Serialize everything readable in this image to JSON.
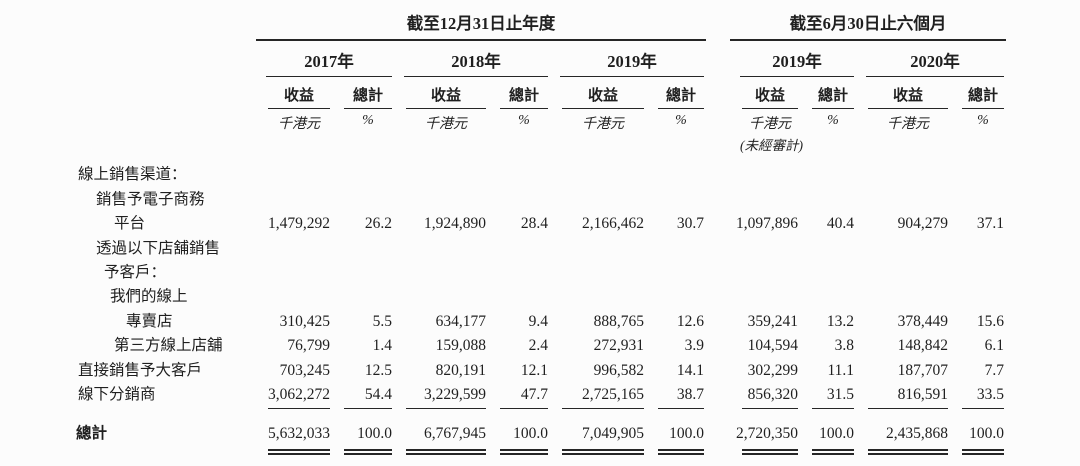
{
  "page": {
    "background": "#fcfcfc",
    "ink_color": "#1f1f1f",
    "rule_color": "#262626"
  },
  "table": {
    "groups": [
      {
        "title": "截至12月31日止年度",
        "years": [
          "2017年",
          "2018年",
          "2019年"
        ]
      },
      {
        "title": "截至6月30日止六個月",
        "years": [
          "2019年",
          "2020年"
        ]
      }
    ],
    "column_headers": {
      "revenue": "收益",
      "total": "總計"
    },
    "units": {
      "revenue": "千港元",
      "percent": "%",
      "unaudited_note": "(未經審計)"
    },
    "rows": [
      {
        "label": "線上銷售渠道：",
        "values": null
      },
      {
        "label": "銷售予電子商務",
        "values": null
      },
      {
        "label": "平台",
        "values": [
          "1,479,292",
          "26.2",
          "1,924,890",
          "28.4",
          "2,166,462",
          "30.7",
          "1,097,896",
          "40.4",
          "904,279",
          "37.1"
        ]
      },
      {
        "label": "透過以下店舖銷售",
        "values": null
      },
      {
        "label": "予客戶：",
        "values": null
      },
      {
        "label": "我們的線上",
        "values": null
      },
      {
        "label": "專賣店",
        "values": [
          "310,425",
          "5.5",
          "634,177",
          "9.4",
          "888,765",
          "12.6",
          "359,241",
          "13.2",
          "378,449",
          "15.6"
        ]
      },
      {
        "label": "第三方線上店舖",
        "values": [
          "76,799",
          "1.4",
          "159,088",
          "2.4",
          "272,931",
          "3.9",
          "104,594",
          "3.8",
          "148,842",
          "6.1"
        ]
      },
      {
        "label": "直接銷售予大客戶",
        "values": [
          "703,245",
          "12.5",
          "820,191",
          "12.1",
          "996,582",
          "14.1",
          "302,299",
          "11.1",
          "187,707",
          "7.7"
        ]
      },
      {
        "label": "線下分銷商",
        "values": [
          "3,062,272",
          "54.4",
          "3,229,599",
          "47.7",
          "2,725,165",
          "38.7",
          "856,320",
          "31.5",
          "816,591",
          "33.5"
        ]
      }
    ],
    "total_row": {
      "label": "總計",
      "values": [
        "5,632,033",
        "100.0",
        "6,767,945",
        "100.0",
        "7,049,905",
        "100.0",
        "2,720,350",
        "100.0",
        "2,435,868",
        "100.0"
      ]
    }
  }
}
